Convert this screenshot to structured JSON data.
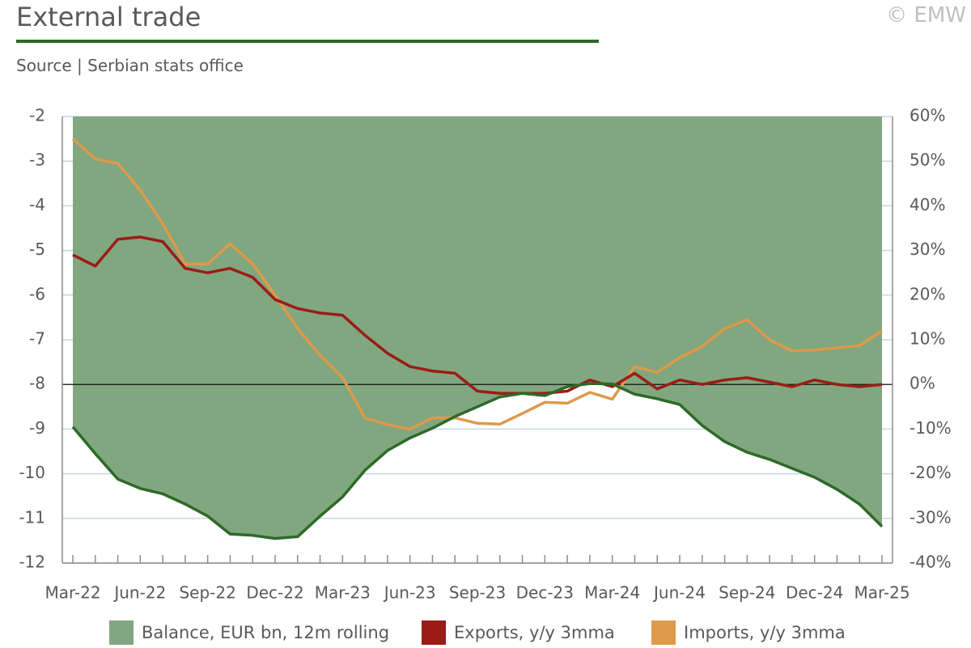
{
  "header": {
    "title": "External trade",
    "subtitle": "Source | Serbian stats office",
    "copyright": "© EMW"
  },
  "colors": {
    "title_rule": "#2d6a27",
    "balance_fill": "#81a780",
    "balance_line": "#2d6a27",
    "exports": "#9b1c17",
    "imports": "#dd9a4b",
    "grid": "#c9d8e2",
    "axis": "#8c8c8c"
  },
  "chart_data": {
    "type": "line",
    "x_tick_labels": [
      "Mar-22",
      "Jun-22",
      "Sep-22",
      "Dec-22",
      "Mar-23",
      "Jun-23",
      "Sep-23",
      "Dec-23",
      "Mar-24",
      "Jun-24",
      "Sep-24",
      "Dec-24",
      "Mar-25"
    ],
    "left_axis": {
      "ylim": [
        -12,
        -2
      ],
      "tick_labels": [
        "-2",
        "-3",
        "-4",
        "-5",
        "-6",
        "-7",
        "-8",
        "-9",
        "-10",
        "-11",
        "-12"
      ]
    },
    "right_axis": {
      "ylim": [
        -40,
        60
      ],
      "tick_labels": [
        "60%",
        "50%",
        "40%",
        "30%",
        "20%",
        "10%",
        "0%",
        "-10%",
        "-20%",
        "-30%",
        "-40%"
      ]
    },
    "grid": true,
    "legend_position": "bottom",
    "series": [
      {
        "name": "Balance, EUR bn, 12m rolling",
        "axis": "left",
        "style": "area",
        "values": [
          -8.95,
          -9.55,
          -10.12,
          -10.33,
          -10.45,
          -10.68,
          -10.95,
          -11.35,
          -11.38,
          -11.45,
          -11.41,
          -10.95,
          -10.52,
          -9.92,
          -9.48,
          -9.2,
          -8.98,
          -8.72,
          -8.5,
          -8.28,
          -8.2,
          -8.25,
          -8.05,
          -7.98,
          -7.99,
          -8.22,
          -8.32,
          -8.45,
          -8.92,
          -9.28,
          -9.52,
          -9.68,
          -9.88,
          -10.08,
          -10.35,
          -10.68,
          -11.18
        ]
      },
      {
        "name": "Exports, y/y 3mma",
        "axis": "right",
        "style": "line",
        "values": [
          29,
          26.5,
          32.5,
          33,
          32,
          26,
          25,
          26,
          24,
          19,
          17,
          16,
          15.5,
          11,
          7,
          4,
          3,
          2.5,
          -1.5,
          -2,
          -2,
          -2,
          -1.5,
          1,
          -0.5,
          2.5,
          -1,
          1,
          0,
          1,
          1.5,
          0.5,
          -0.5,
          1,
          0,
          -0.5,
          0
        ]
      },
      {
        "name": "Imports, y/y 3mma",
        "axis": "right",
        "style": "line",
        "values": [
          55,
          50.5,
          49.5,
          43.5,
          36,
          27,
          27,
          31.5,
          27,
          20,
          12.5,
          6.5,
          1.5,
          -7.5,
          -9,
          -10,
          -7.5,
          -7.5,
          -8.7,
          -8.9,
          -6.5,
          -4,
          -4.2,
          -1.8,
          -3.3,
          4,
          2.7,
          6,
          8.5,
          12.5,
          14.5,
          10,
          7.5,
          7.7,
          8.2,
          8.7,
          12
        ]
      }
    ]
  }
}
